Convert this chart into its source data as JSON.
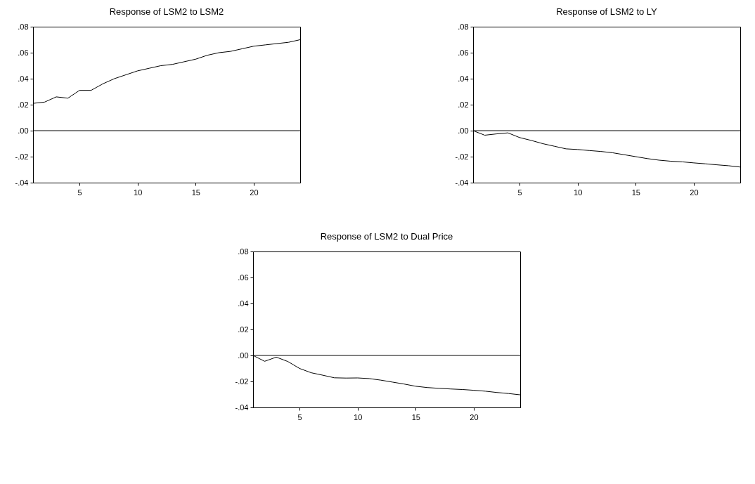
{
  "chart_data": [
    {
      "type": "line",
      "title": "Response of LSM2 to LSM2",
      "x": [
        1,
        2,
        3,
        4,
        5,
        6,
        7,
        8,
        9,
        10,
        11,
        12,
        13,
        14,
        15,
        16,
        17,
        18,
        19,
        20,
        21,
        22,
        23,
        24
      ],
      "series": [
        {
          "color": "#000000",
          "values": [
            0.021,
            0.022,
            0.026,
            0.025,
            0.031,
            0.031,
            0.036,
            0.04,
            0.043,
            0.046,
            0.048,
            0.05,
            0.051,
            0.053,
            0.055,
            0.058,
            0.06,
            0.061,
            0.063,
            0.065,
            0.066,
            0.067,
            0.068,
            0.07
          ]
        }
      ],
      "xlim": [
        1,
        24
      ],
      "xticks": [
        5,
        10,
        15,
        20
      ],
      "ylim": [
        -0.04,
        0.08
      ],
      "yticks": [
        {
          "value": -0.04,
          "label": "-.04"
        },
        {
          "value": -0.02,
          "label": "-.02"
        },
        {
          "value": 0,
          "label": ".00"
        },
        {
          "value": 0.02,
          "label": ".02"
        },
        {
          "value": 0.04,
          "label": ".04"
        },
        {
          "value": 0.06,
          "label": ".06"
        },
        {
          "value": 0.08,
          "label": ".08"
        }
      ],
      "ref_lines": [
        {
          "axis": "y",
          "value": 0,
          "color": "#000000"
        }
      ],
      "grid": false,
      "legend": false
    },
    {
      "type": "line",
      "title": "Response of LSM2 to LY",
      "x": [
        1,
        2,
        3,
        4,
        5,
        6,
        7,
        8,
        9,
        10,
        11,
        12,
        13,
        14,
        15,
        16,
        17,
        18,
        19,
        20,
        21,
        22,
        23,
        24
      ],
      "series": [
        {
          "color": "#000000",
          "values": [
            0,
            -0.0035,
            -0.0025,
            -0.0017,
            -0.0053,
            -0.0075,
            -0.01,
            -0.012,
            -0.014,
            -0.0145,
            -0.0153,
            -0.016,
            -0.017,
            -0.0185,
            -0.02,
            -0.0215,
            -0.0227,
            -0.0235,
            -0.024,
            -0.0248,
            -0.0255,
            -0.0263,
            -0.027,
            -0.028
          ]
        }
      ],
      "xlim": [
        1,
        24
      ],
      "xticks": [
        5,
        10,
        15,
        20
      ],
      "ylim": [
        -0.04,
        0.08
      ],
      "yticks": [
        {
          "value": -0.04,
          "label": "-.04"
        },
        {
          "value": -0.02,
          "label": "-.02"
        },
        {
          "value": 0,
          "label": ".00"
        },
        {
          "value": 0.02,
          "label": ".02"
        },
        {
          "value": 0.04,
          "label": ".04"
        },
        {
          "value": 0.06,
          "label": ".06"
        },
        {
          "value": 0.08,
          "label": ".08"
        }
      ],
      "ref_lines": [
        {
          "axis": "y",
          "value": 0,
          "color": "#000000"
        }
      ],
      "grid": false,
      "legend": false
    },
    {
      "type": "line",
      "title": "Response of LSM2 to Dual Price",
      "x": [
        1,
        2,
        3,
        4,
        5,
        6,
        7,
        8,
        9,
        10,
        11,
        12,
        13,
        14,
        15,
        16,
        17,
        18,
        19,
        20,
        21,
        22,
        23,
        24
      ],
      "series": [
        {
          "color": "#000000",
          "values": [
            0,
            -0.0045,
            -0.0013,
            -0.0047,
            -0.01,
            -0.0133,
            -0.0152,
            -0.0172,
            -0.0174,
            -0.0173,
            -0.0178,
            -0.019,
            -0.0205,
            -0.022,
            -0.0237,
            -0.0247,
            -0.0253,
            -0.0258,
            -0.0262,
            -0.0268,
            -0.0275,
            -0.0285,
            -0.0293,
            -0.0303
          ]
        }
      ],
      "xlim": [
        1,
        24
      ],
      "xticks": [
        5,
        10,
        15,
        20
      ],
      "ylim": [
        -0.04,
        0.08
      ],
      "yticks": [
        {
          "value": -0.04,
          "label": "-.04"
        },
        {
          "value": -0.02,
          "label": "-.02"
        },
        {
          "value": 0,
          "label": ".00"
        },
        {
          "value": 0.02,
          "label": ".02"
        },
        {
          "value": 0.04,
          "label": ".04"
        },
        {
          "value": 0.06,
          "label": ".06"
        },
        {
          "value": 0.08,
          "label": ".08"
        }
      ],
      "ref_lines": [
        {
          "axis": "y",
          "value": 0,
          "color": "#000000"
        }
      ],
      "grid": false,
      "legend": false
    }
  ]
}
